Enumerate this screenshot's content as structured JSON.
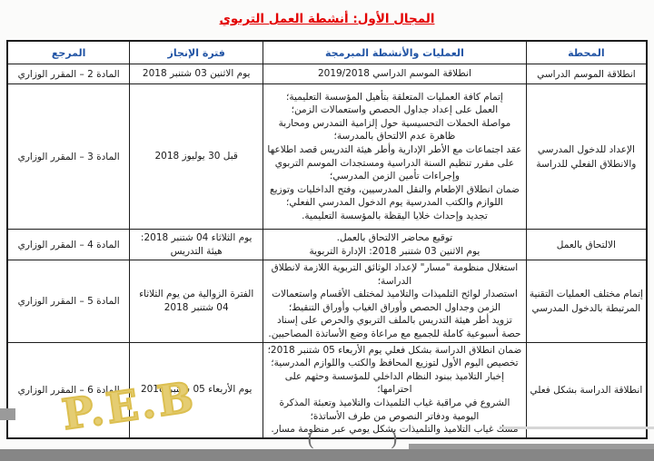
{
  "title": "المجال الأول: أنشطة العمل التربوي",
  "watermark": "P.E.B",
  "footer": {
    "left_paren": "(",
    "right_paren": ")"
  },
  "colors": {
    "title-color": "#e30000",
    "header-color": "#2053a4",
    "watermark-color": "#dcbf50",
    "bar-color": "#868686"
  },
  "table": {
    "headers": {
      "station": "المحطة",
      "operations": "العمليات والأنشطة المبرمجة",
      "period": "فترة الإنجاز",
      "reference": "المرجع"
    },
    "rows": [
      {
        "station": "انطلاقة الموسم الدراسي",
        "operations": [
          "انطلاقة الموسم الدراسي 2019/2018"
        ],
        "period": [
          "يوم الاثنين 03 شتنبر 2018"
        ],
        "reference": "المادة 2 – المقرر الوزاري"
      },
      {
        "station": "الإعداد للدخول المدرسي والانطلاق الفعلي للدراسة",
        "operations": [
          "إتمام كافة العمليات المتعلقة بتأهيل المؤسسة التعليمية؛",
          "العمل على إعداد جداول الحصص واستعمالات الزمن؛",
          "مواصلة الحملات التحسيسية حول إلزامية التمدرس ومحاربة ظاهرة عدم الالتحاق بالمدرسة؛",
          "عقد اجتماعات مع الأطر الإدارية وأطر هيئة التدريس قصد اطلاعها على مقرر تنظيم السنة الدراسية ومستجدات الموسم التربوي وإجراءات تأمين الزمن المدرسي؛",
          "ضمان انطلاق الإطعام والنقل المدرسيين، وفتح الداخليات وتوزيع اللوازم والكتب المدرسية يوم الدخول المدرسي الفعلي؛",
          "تجديد وإحداث خلايا اليقظة بالمؤسسة التعليمية."
        ],
        "period": [
          "قبل 30 يوليوز 2018"
        ],
        "reference": "المادة 3 – المقرر الوزاري"
      },
      {
        "station": "الالتحاق بالعمل",
        "operations": [
          "توقيع محاضر الالتحاق بالعمل.",
          "يوم الاثنين 03 شتنبر 2018: الإدارة التربوية"
        ],
        "period": [
          "يوم الثلاثاء 04 شتنبر 2018:",
          "هيئة التدريس"
        ],
        "reference": "المادة 4 – المقرر الوزاري"
      },
      {
        "station": "إتمام مختلف العمليات التقنية المرتبطة بالدخول المدرسي",
        "operations": [
          "استغلال منظومة \"مسار\" لإعداد الوثائق التربوية اللازمة لانطلاق الدراسة؛",
          "استصدار لوائح التلميذات والتلاميذ لمختلف الأقسام واستعمالات الزمن وجداول الحصص وأوراق الغياب وأوراق التنقيط؛",
          "تزويد أطر هيئة التدريس بالملف التربوي والحرص على إسناد حصة أسبوعية كاملة للجميع مع مراعاة وضع الأساتذة المصاحبين."
        ],
        "period": [
          "الفترة الزوالية من يوم الثلاثاء",
          "04 شتنبر 2018"
        ],
        "reference": "المادة 5 – المقرر الوزاري"
      },
      {
        "station": "انطلاقة الدراسة بشكل فعلي",
        "operations": [
          "ضمان انطلاق الدراسة بشكل فعلي يوم الأربعاء 05 شتنبر 2018؛",
          "تخصيص اليوم الأول لتوزيع المحافظ والكتب واللوازم المدرسية؛",
          "إخبار التلاميذ ببنود النظام الداخلي للمؤسسة وحثهم على احترامها؛",
          "الشروع في مراقبة غياب التلميذات والتلاميذ وتعبئة المذكرة اليومية ودفاتر النصوص من طرف الأساتذة؛",
          "مسك غياب التلاميذ والتلميذات بشكل يومي عبر منظومة مسار."
        ],
        "period": [
          "يوم الأربعاء 05 شتنبر 2018"
        ],
        "reference": "المادة 6 – المقرر الوزاري"
      }
    ]
  }
}
